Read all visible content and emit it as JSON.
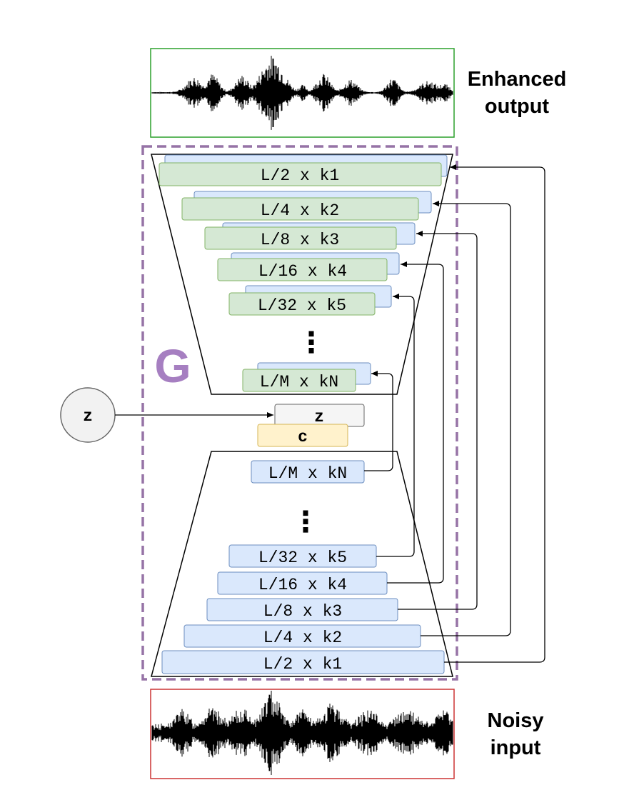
{
  "outputs": {
    "enhanced_line1": "Enhanced",
    "enhanced_line2": "output",
    "noisy_line1": "Noisy",
    "noisy_line2": "input"
  },
  "generator_label": "G",
  "latent": {
    "node_label": "z",
    "block_label": "z",
    "cond_label": "c"
  },
  "encoder_layers": [
    "L/2 x k1",
    "L/4 x k2",
    "L/8 x k3",
    "L/16 x k4",
    "L/32 x k5",
    "L/M x kN"
  ],
  "decoder_layers": [
    "L/2 x k1",
    "L/4 x k2",
    "L/8 x k3",
    "L/16 x k4",
    "L/32 x k5",
    "L/M x kN"
  ],
  "ellipsis": "⋮",
  "colors": {
    "encoder_fill": "#d5e8d4",
    "encoder_stroke": "#82b366",
    "decoder_fill": "#dae8fc",
    "decoder_stroke": "#6c8ebf",
    "z_fill": "#f5f5f5",
    "z_stroke": "#666666",
    "c_fill": "#fff2cc",
    "c_stroke": "#d6b656",
    "g_border": "#9673a6",
    "output_border": "#2ca02c",
    "input_border": "#cc3333"
  }
}
